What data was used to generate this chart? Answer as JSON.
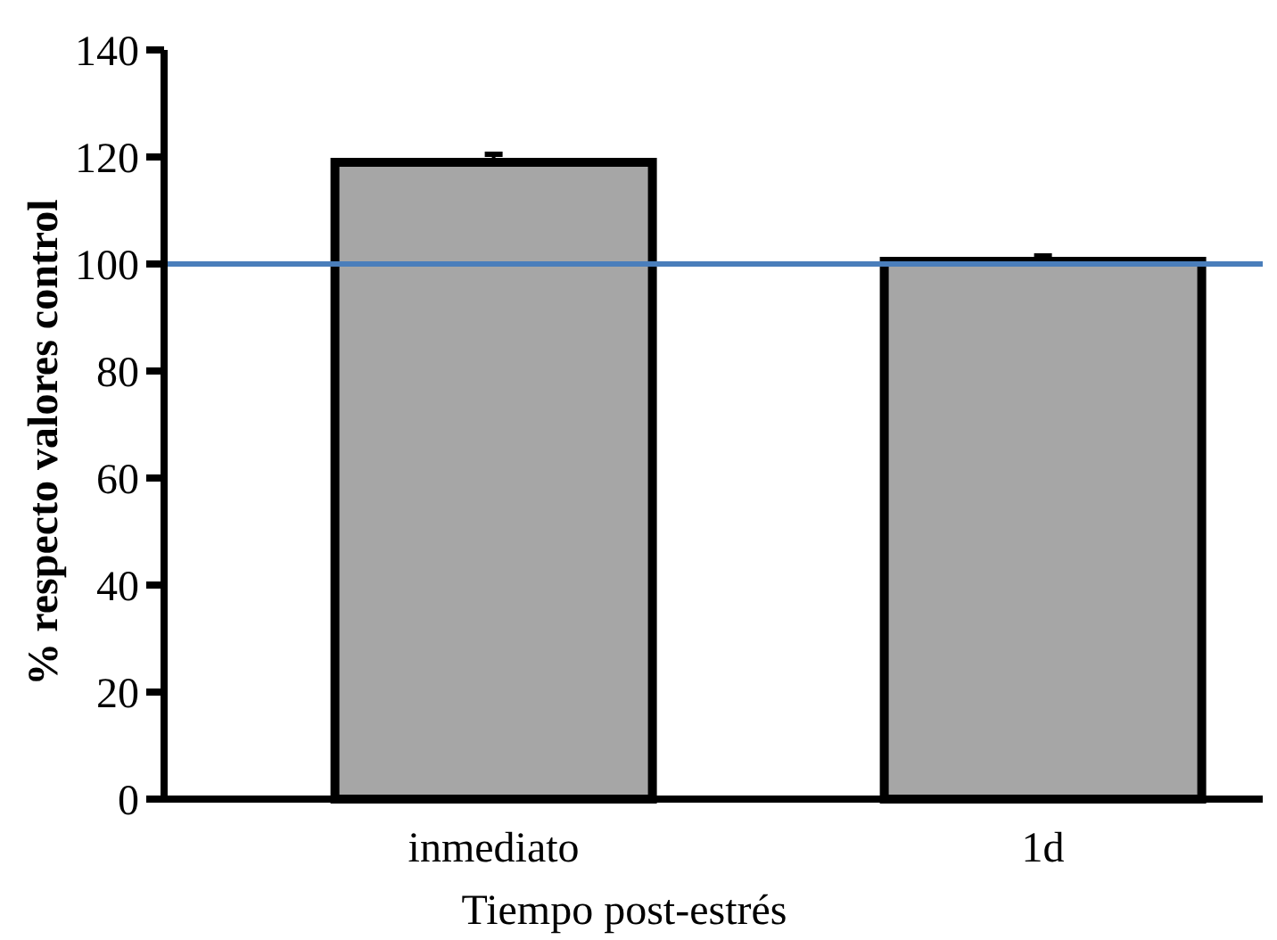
{
  "chart_data": {
    "type": "bar",
    "xlabel": "Tiempo post-estrés",
    "ylabel": "% respecto valores control",
    "categories": [
      "inmediato",
      "1d"
    ],
    "values": [
      119,
      100.5
    ],
    "errors": [
      1.5,
      1
    ],
    "color": "#a6a6a6",
    "ylim": [
      0,
      140
    ],
    "yticks": [
      0,
      20,
      40,
      60,
      80,
      100,
      120,
      140
    ],
    "ref_lines": [
      {
        "axis": "y",
        "value": 100,
        "color": "#4a7ebb"
      }
    ]
  }
}
